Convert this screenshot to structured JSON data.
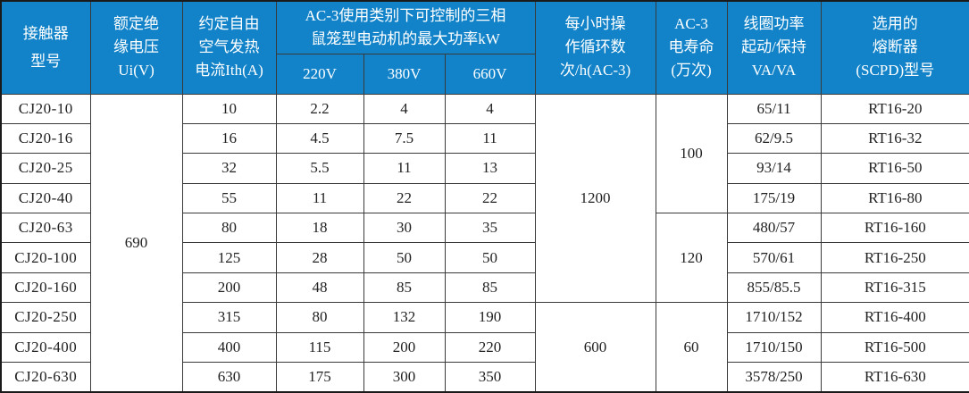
{
  "table": {
    "title_semantic": "CJ20 contactor specification table",
    "header": {
      "contactor": [
        "接触器",
        "型号"
      ],
      "ui": [
        "额定绝",
        "缘电压",
        "Ui(V)"
      ],
      "ith": [
        "约定自由",
        "空气发热",
        "电流Ith(A)"
      ],
      "ac3_group": [
        "AC-3使用类别下可控制的三相",
        "鼠笼型电动机的最大功率kW"
      ],
      "v220": "220V",
      "v380": "380V",
      "v660": "660V",
      "cycles": [
        "每小时操",
        "作循环数",
        "次/h(AC-3)"
      ],
      "life": [
        "AC-3",
        "电寿命",
        "(万次)"
      ],
      "coil": [
        "线圈功率",
        "起动/保持",
        "VA/VA"
      ],
      "fuse": [
        "选用的",
        "熔断器",
        "(SCPD)型号"
      ]
    },
    "merged": {
      "ui_all": "690",
      "cycles_1": "1200",
      "cycles_2": "600",
      "life_1": "100",
      "life_2": "120",
      "life_3": "60"
    },
    "rows": [
      {
        "model": "CJ20-10",
        "ith": "10",
        "p220": "2.2",
        "p380": "4",
        "p660": "4",
        "coil": "65/11",
        "fuse": "RT16-20"
      },
      {
        "model": "CJ20-16",
        "ith": "16",
        "p220": "4.5",
        "p380": "7.5",
        "p660": "11",
        "coil": "62/9.5",
        "fuse": "RT16-32"
      },
      {
        "model": "CJ20-25",
        "ith": "32",
        "p220": "5.5",
        "p380": "11",
        "p660": "13",
        "coil": "93/14",
        "fuse": "RT16-50"
      },
      {
        "model": "CJ20-40",
        "ith": "55",
        "p220": "11",
        "p380": "22",
        "p660": "22",
        "coil": "175/19",
        "fuse": "RT16-80"
      },
      {
        "model": "CJ20-63",
        "ith": "80",
        "p220": "18",
        "p380": "30",
        "p660": "35",
        "coil": "480/57",
        "fuse": "RT16-160"
      },
      {
        "model": "CJ20-100",
        "ith": "125",
        "p220": "28",
        "p380": "50",
        "p660": "50",
        "coil": "570/61",
        "fuse": "RT16-250"
      },
      {
        "model": "CJ20-160",
        "ith": "200",
        "p220": "48",
        "p380": "85",
        "p660": "85",
        "coil": "855/85.5",
        "fuse": "RT16-315"
      },
      {
        "model": "CJ20-250",
        "ith": "315",
        "p220": "80",
        "p380": "132",
        "p660": "190",
        "coil": "1710/152",
        "fuse": "RT16-400"
      },
      {
        "model": "CJ20-400",
        "ith": "400",
        "p220": "115",
        "p380": "200",
        "p660": "220",
        "coil": "1710/150",
        "fuse": "RT16-500"
      },
      {
        "model": "CJ20-630",
        "ith": "630",
        "p220": "175",
        "p380": "300",
        "p660": "350",
        "coil": "3578/250",
        "fuse": "RT16-630"
      }
    ],
    "colors": {
      "header_bg": "#1283C8",
      "header_text": "#FFFFFF",
      "border": "#3A3A3A",
      "body_text": "#222222"
    }
  }
}
